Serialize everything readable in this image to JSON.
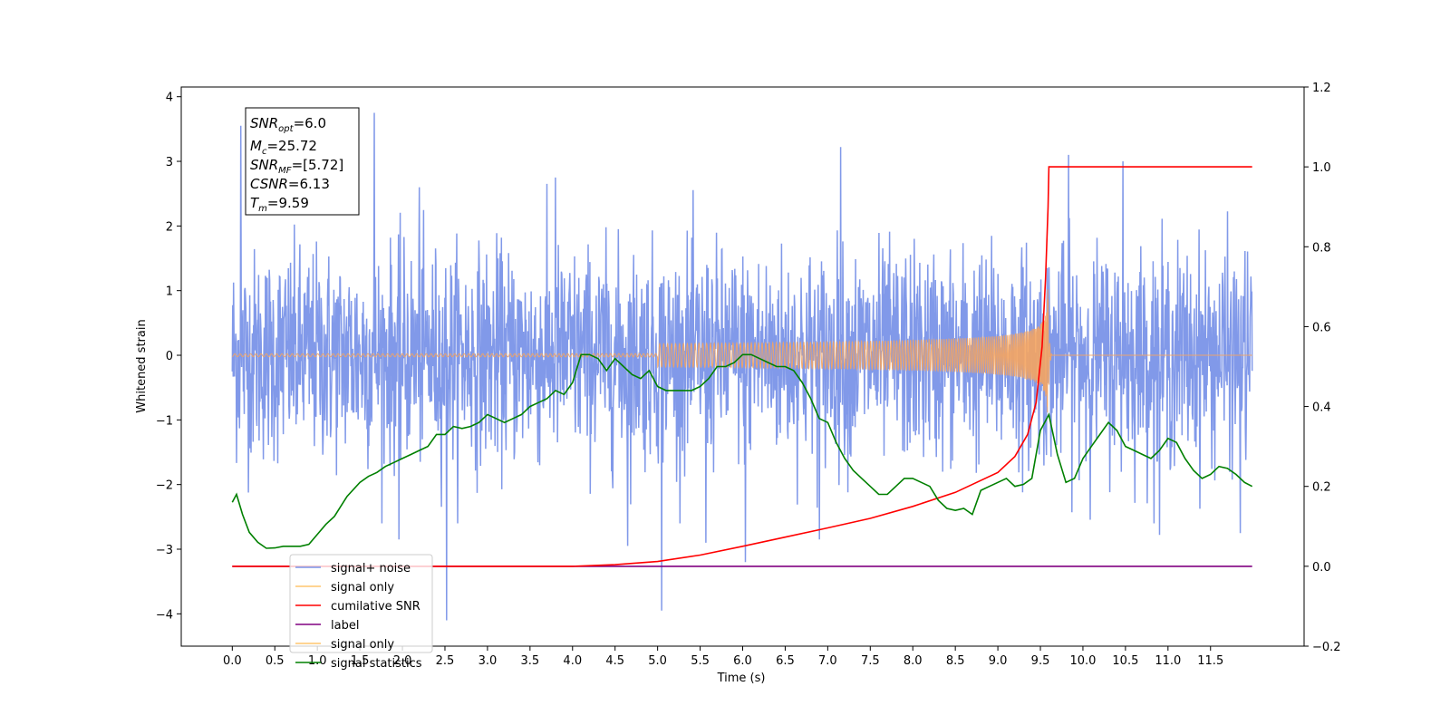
{
  "chart_data": {
    "type": "line",
    "title": "",
    "xlabel": "Time (s)",
    "ylabel": "Whitened strain",
    "xlim": [
      -0.6,
      12.6
    ],
    "ylim_left": [
      -4.5,
      4.15
    ],
    "ylim_right": [
      -0.2,
      1.2
    ],
    "grid": false,
    "x_ticks": [
      "0.0",
      "0.5",
      "1.0",
      "1.5",
      "2.0",
      "2.5",
      "3.0",
      "3.5",
      "4.0",
      "4.5",
      "5.0",
      "5.5",
      "6.0",
      "6.5",
      "7.0",
      "7.5",
      "8.0",
      "8.5",
      "9.0",
      "9.5",
      "10.0",
      "10.5",
      "11.0",
      "11.5"
    ],
    "y_left_ticks": [
      "4",
      "3",
      "2",
      "1",
      "0",
      "−1",
      "−2",
      "−3",
      "−4"
    ],
    "y_right_ticks": [
      "1.2",
      "1.0",
      "0.8",
      "0.6",
      "0.4",
      "0.2",
      "0.0",
      "−0.2"
    ],
    "info_box": {
      "snr_opt": {
        "base": "SNR",
        "sub": "opt",
        "value": "=6.0"
      },
      "mc": {
        "base": "M",
        "sub": "c",
        "value": "=25.72"
      },
      "snr_mf": {
        "base": "SNR",
        "sub": "MF",
        "value": "=[5.72]"
      },
      "csnr": {
        "base": "CSNR",
        "value": "=6.13"
      },
      "tm": {
        "base": "T",
        "sub": "m",
        "value": "=9.59"
      }
    },
    "legend": {
      "placement": "lower-left",
      "entries": [
        {
          "label": "signal+ noise",
          "color": "#7a93e8"
        },
        {
          "label": "signal only",
          "color": "#ffc56e"
        },
        {
          "label": "cumilative SNR",
          "color": "#ff0000"
        },
        {
          "label": "label",
          "color": "#800080"
        },
        {
          "label": "signal only",
          "color": "#ffc56e"
        },
        {
          "label": "signal statistics",
          "color": "#008000"
        }
      ]
    },
    "series": [
      {
        "name": "signal+ noise",
        "axis": "left",
        "color": "#7a93e8",
        "x_range": [
          0.0,
          11.99
        ],
        "typical_envelope": [
          -1.7,
          1.7
        ],
        "spikes": [
          {
            "x": 0.1,
            "y": 3.55
          },
          {
            "x": 1.67,
            "y": 3.75
          },
          {
            "x": 2.2,
            "y": 2.6
          },
          {
            "x": 3.8,
            "y": 2.75
          },
          {
            "x": 7.15,
            "y": 3.22
          },
          {
            "x": 9.83,
            "y": 3.1
          },
          {
            "x": 10.47,
            "y": 3.0
          },
          {
            "x": 2.52,
            "y": -4.1
          },
          {
            "x": 5.05,
            "y": -3.95
          },
          {
            "x": 6.03,
            "y": -3.2
          },
          {
            "x": 1.96,
            "y": -2.85
          },
          {
            "x": 4.65,
            "y": -2.95
          },
          {
            "x": 6.9,
            "y": -2.85
          },
          {
            "x": 10.9,
            "y": -2.78
          },
          {
            "x": 11.85,
            "y": -2.75
          },
          {
            "x": 5.57,
            "y": -2.9
          }
        ]
      },
      {
        "name": "signal only",
        "axis": "left",
        "color": "#f4a460",
        "type": "chirp",
        "merger_time": 9.59,
        "peak_amplitude": 1.05
      },
      {
        "name": "cumilative SNR",
        "axis": "right",
        "color": "#ff0000",
        "x": [
          0.0,
          4.0,
          4.5,
          5.0,
          5.5,
          6.0,
          6.5,
          7.0,
          7.5,
          8.0,
          8.5,
          9.0,
          9.2,
          9.35,
          9.45,
          9.52,
          9.56,
          9.59,
          9.6,
          11.99
        ],
        "y": [
          0.0,
          0.0,
          0.004,
          0.012,
          0.028,
          0.05,
          0.073,
          0.096,
          0.12,
          0.15,
          0.185,
          0.235,
          0.275,
          0.33,
          0.41,
          0.55,
          0.72,
          0.9,
          1.0,
          1.0
        ]
      },
      {
        "name": "label",
        "axis": "right",
        "color": "#800080",
        "x": [
          0.0,
          11.99
        ],
        "y": [
          0.0,
          0.0
        ]
      },
      {
        "name": "signal statistics",
        "axis": "right",
        "color": "#008000",
        "x": [
          0.0,
          0.05,
          0.12,
          0.2,
          0.3,
          0.4,
          0.5,
          0.6,
          0.8,
          0.9,
          1.0,
          1.1,
          1.2,
          1.35,
          1.5,
          1.6,
          1.7,
          1.8,
          1.9,
          2.0,
          2.1,
          2.2,
          2.3,
          2.4,
          2.5,
          2.6,
          2.7,
          2.8,
          2.9,
          3.0,
          3.1,
          3.2,
          3.3,
          3.4,
          3.5,
          3.6,
          3.7,
          3.8,
          3.9,
          4.0,
          4.1,
          4.2,
          4.3,
          4.4,
          4.5,
          4.6,
          4.7,
          4.8,
          4.9,
          5.0,
          5.1,
          5.2,
          5.3,
          5.4,
          5.5,
          5.6,
          5.7,
          5.8,
          5.9,
          6.0,
          6.1,
          6.2,
          6.3,
          6.4,
          6.5,
          6.6,
          6.7,
          6.8,
          6.9,
          7.0,
          7.1,
          7.2,
          7.3,
          7.4,
          7.5,
          7.6,
          7.7,
          7.8,
          7.9,
          8.0,
          8.1,
          8.2,
          8.3,
          8.4,
          8.5,
          8.6,
          8.7,
          8.8,
          8.9,
          9.0,
          9.1,
          9.2,
          9.3,
          9.4,
          9.5,
          9.6,
          9.7,
          9.8,
          9.9,
          10.0,
          10.1,
          10.2,
          10.3,
          10.4,
          10.5,
          10.6,
          10.7,
          10.8,
          10.9,
          11.0,
          11.1,
          11.2,
          11.3,
          11.4,
          11.5,
          11.6,
          11.7,
          11.8,
          11.9,
          11.99
        ],
        "y": [
          0.16,
          0.18,
          0.13,
          0.085,
          0.06,
          0.045,
          0.046,
          0.05,
          0.05,
          0.055,
          0.08,
          0.105,
          0.125,
          0.175,
          0.21,
          0.225,
          0.235,
          0.25,
          0.26,
          0.27,
          0.28,
          0.29,
          0.3,
          0.33,
          0.33,
          0.35,
          0.345,
          0.35,
          0.36,
          0.38,
          0.37,
          0.36,
          0.37,
          0.38,
          0.4,
          0.41,
          0.42,
          0.44,
          0.43,
          0.46,
          0.53,
          0.53,
          0.52,
          0.49,
          0.52,
          0.5,
          0.48,
          0.47,
          0.49,
          0.45,
          0.44,
          0.44,
          0.44,
          0.44,
          0.45,
          0.47,
          0.5,
          0.5,
          0.51,
          0.53,
          0.53,
          0.52,
          0.51,
          0.5,
          0.5,
          0.49,
          0.46,
          0.42,
          0.37,
          0.36,
          0.31,
          0.27,
          0.24,
          0.22,
          0.2,
          0.18,
          0.18,
          0.2,
          0.22,
          0.22,
          0.21,
          0.2,
          0.165,
          0.145,
          0.14,
          0.145,
          0.13,
          0.19,
          0.2,
          0.21,
          0.22,
          0.2,
          0.205,
          0.22,
          0.34,
          0.38,
          0.28,
          0.21,
          0.22,
          0.27,
          0.3,
          0.33,
          0.36,
          0.34,
          0.3,
          0.29,
          0.28,
          0.27,
          0.29,
          0.32,
          0.31,
          0.27,
          0.24,
          0.22,
          0.23,
          0.25,
          0.245,
          0.23,
          0.21,
          0.2
        ]
      }
    ]
  }
}
